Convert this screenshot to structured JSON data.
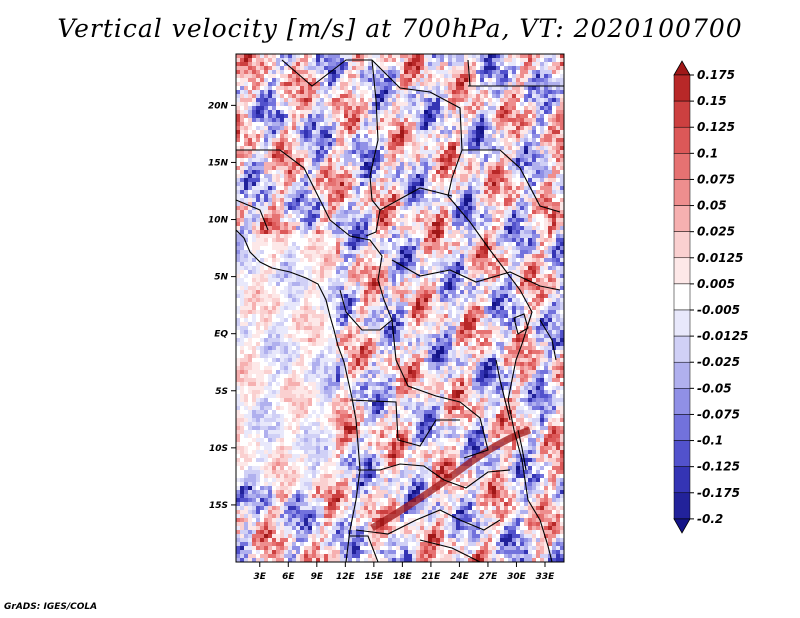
{
  "title": "Vertical velocity [m/s] at 700hPa, VT: 2020100700",
  "credit": "GrADS: IGES/COLA",
  "chart_data": {
    "type": "heatmap",
    "title": "Vertical velocity [m/s] at 700hPa, VT: 2020100700",
    "variable": "Vertical velocity",
    "units": "m/s",
    "level": "700hPa",
    "valid_time": "2020100700",
    "x_ticks": [
      "3E",
      "6E",
      "9E",
      "12E",
      "15E",
      "18E",
      "21E",
      "24E",
      "27E",
      "30E",
      "33E"
    ],
    "y_ticks": [
      "20N",
      "15N",
      "10N",
      "5N",
      "EQ",
      "5S",
      "10S",
      "15S"
    ],
    "x_tick_values": [
      3,
      6,
      9,
      12,
      15,
      18,
      21,
      24,
      27,
      30,
      33
    ],
    "y_tick_values": [
      20,
      15,
      10,
      5,
      0,
      -5,
      -10,
      -15
    ],
    "lon_range": [
      0.5,
      35
    ],
    "lat_range": [
      -20,
      24.5
    ],
    "colorbar": {
      "labels": [
        "0.175",
        "0.15",
        "0.125",
        "0.1",
        "0.075",
        "0.05",
        "0.025",
        "0.0125",
        "0.005",
        "-0.005",
        "-0.0125",
        "-0.025",
        "-0.05",
        "-0.075",
        "-0.1",
        "-0.125",
        "-0.175",
        "-0.2"
      ],
      "colors": [
        "#a01818",
        "#b82828",
        "#cc4040",
        "#dc5858",
        "#e67272",
        "#ee8e8e",
        "#f6b0b0",
        "#fad0d0",
        "#fde8e8",
        "#ffffff",
        "#e8e8fb",
        "#d0d0f6",
        "#b0b0ee",
        "#9090e6",
        "#7272dc",
        "#5252cc",
        "#3434b4",
        "#22229a",
        "#141488"
      ]
    }
  }
}
